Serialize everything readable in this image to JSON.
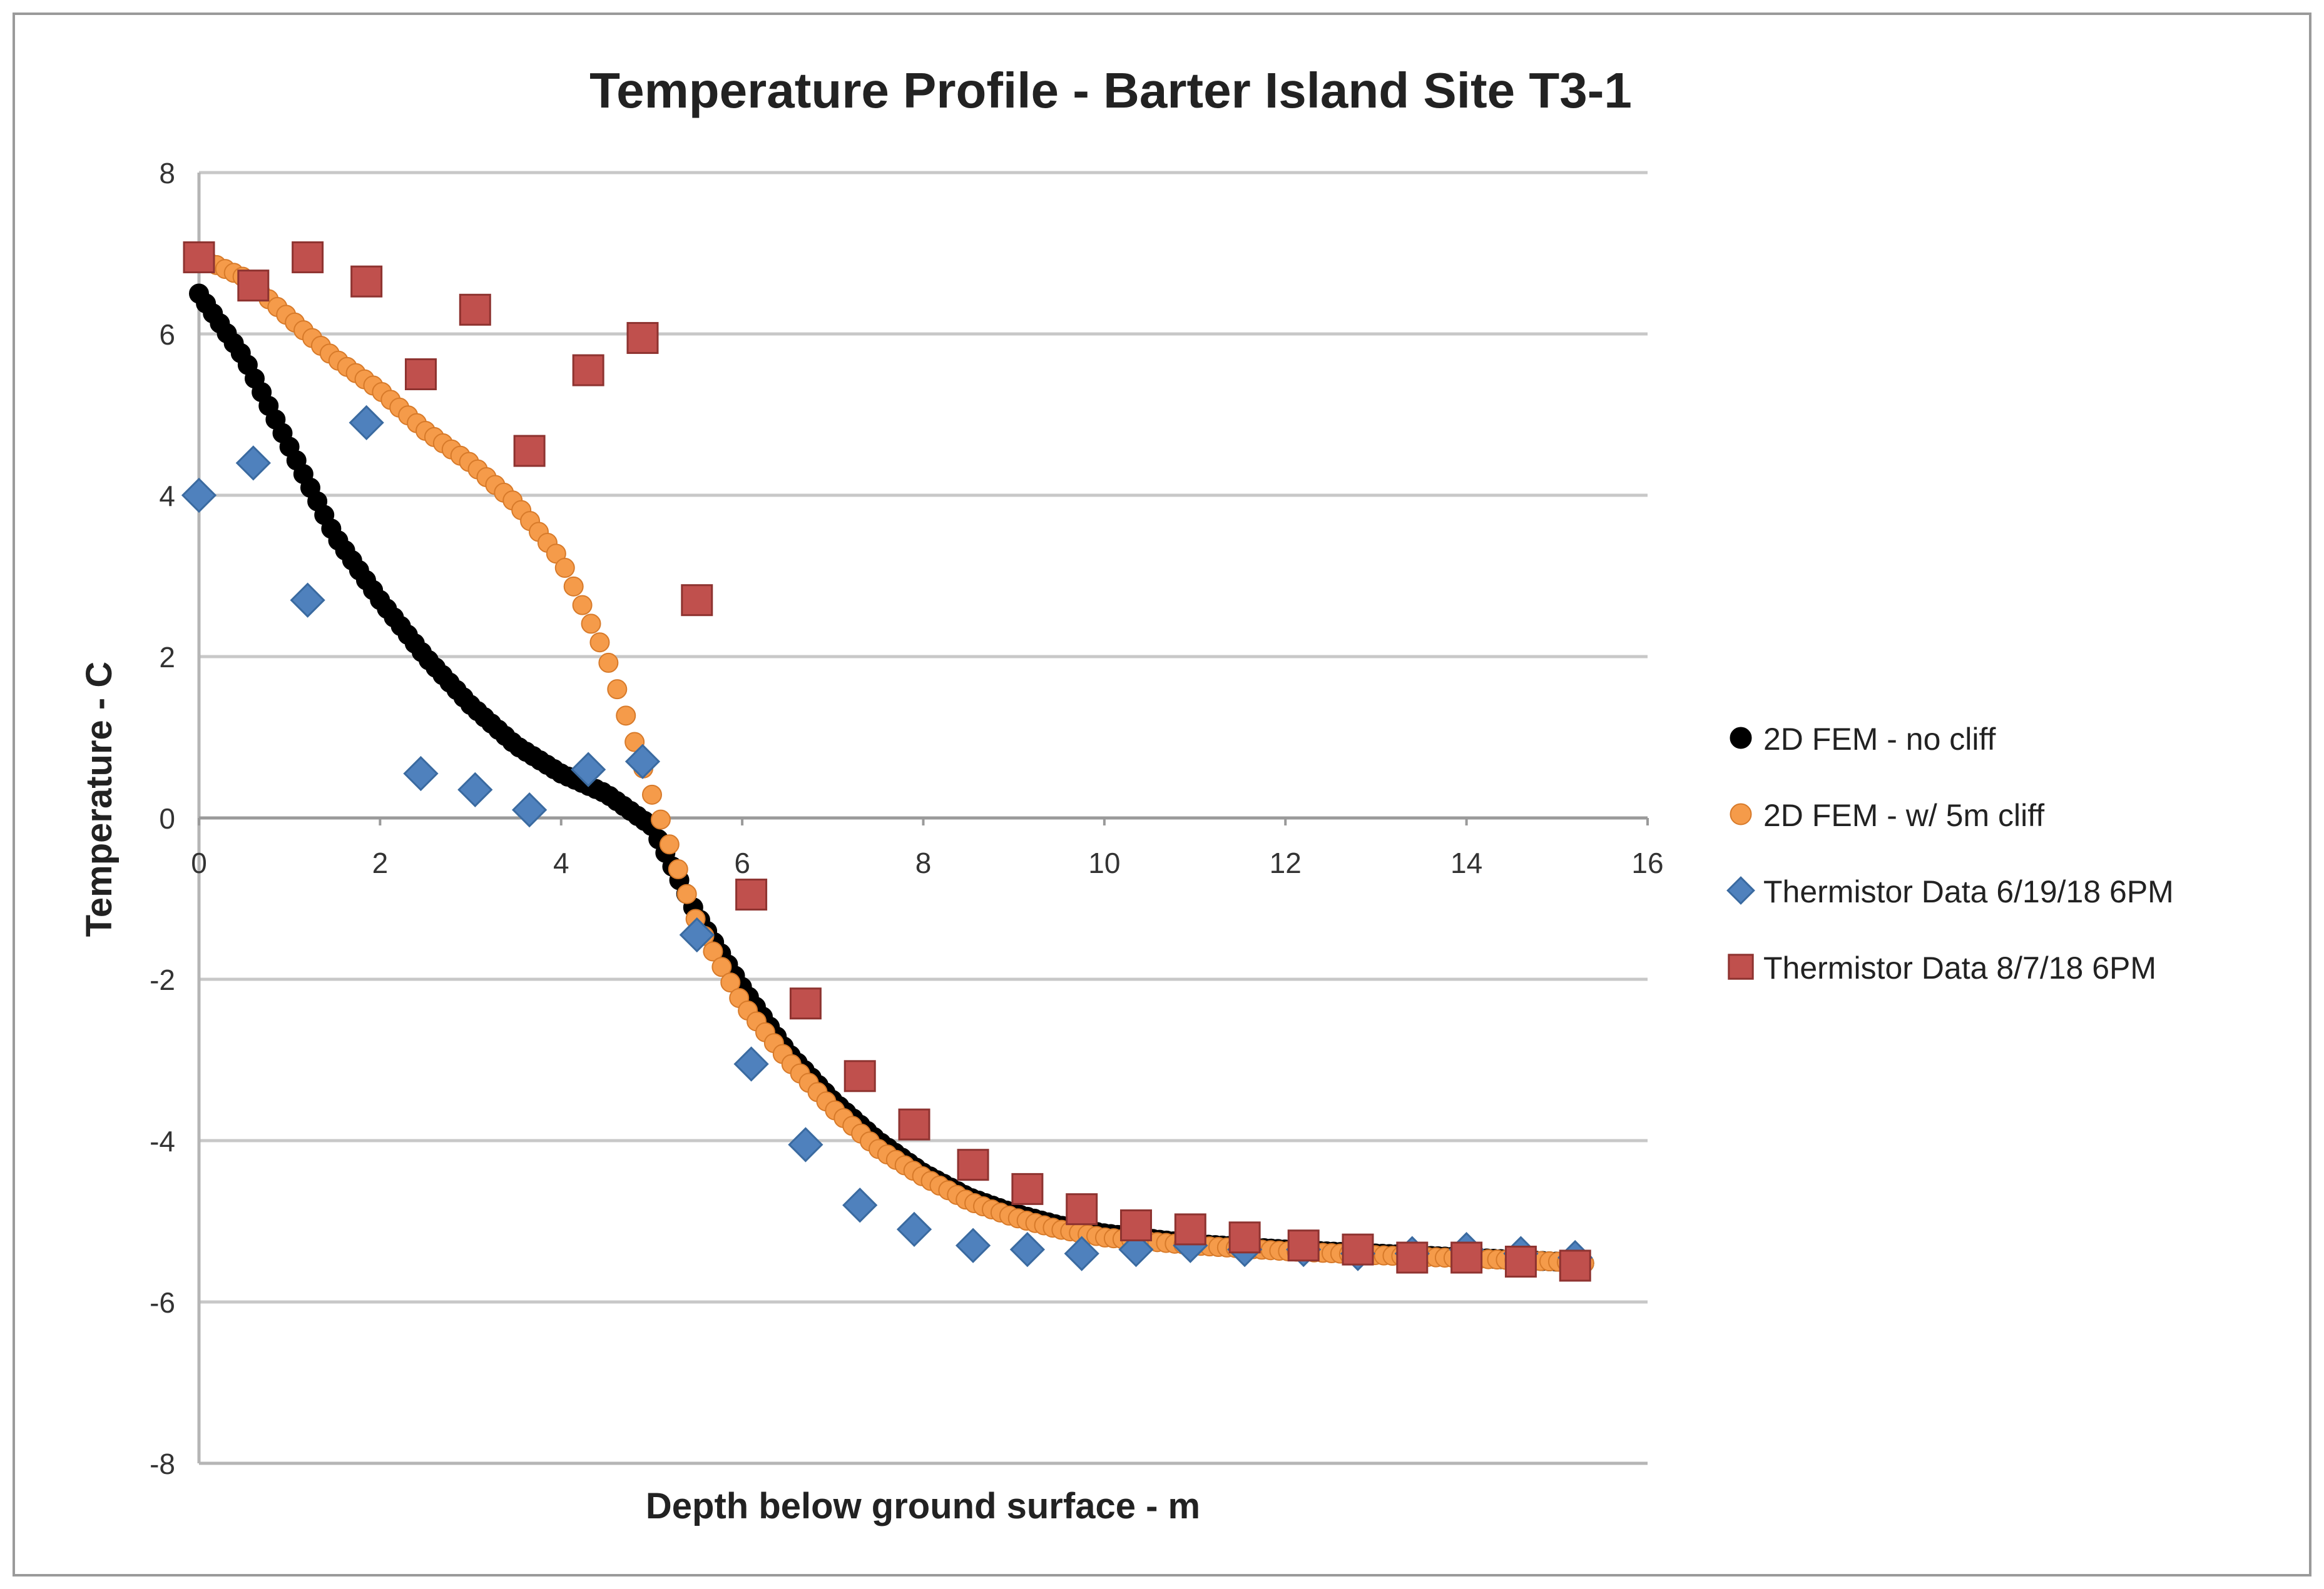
{
  "chart_data": {
    "type": "scatter",
    "title": "Temperature Profile - Barter Island Site T3-1",
    "xlabel": "Depth below ground surface - m",
    "ylabel": "Temperature - C",
    "xlim": [
      0,
      16
    ],
    "ylim": [
      -8,
      8
    ],
    "x_ticks": [
      0,
      2,
      4,
      6,
      8,
      10,
      12,
      14,
      16
    ],
    "y_ticks": [
      -8,
      -6,
      -4,
      -2,
      0,
      2,
      4,
      6,
      8
    ],
    "grid": "horizontal",
    "legend_position": "right",
    "series": [
      {
        "name": "2D FEM - no cliff",
        "marker": "circle",
        "color": "#000000",
        "anchor_x": [
          0,
          0.5,
          1,
          1.5,
          2,
          2.5,
          3,
          3.5,
          4,
          4.5,
          5,
          5.5,
          6,
          6.5,
          7,
          7.5,
          8,
          8.5,
          9,
          9.5,
          10,
          11,
          12,
          13,
          14,
          15,
          15.3
        ],
        "anchor_y": [
          6.5,
          5.7,
          4.6,
          3.5,
          2.7,
          2.0,
          1.4,
          0.9,
          0.55,
          0.3,
          -0.1,
          -1.2,
          -2.1,
          -2.9,
          -3.5,
          -4.0,
          -4.4,
          -4.7,
          -4.9,
          -5.05,
          -5.15,
          -5.28,
          -5.35,
          -5.4,
          -5.45,
          -5.5,
          -5.52
        ],
        "n_points": 200
      },
      {
        "name": "2D FEM - w/ 5m cliff",
        "marker": "circle",
        "color": "#f59b4a",
        "anchor_x": [
          0,
          0.5,
          1,
          1.5,
          2,
          2.5,
          3,
          3.5,
          4,
          4.5,
          5,
          5.5,
          6,
          6.5,
          7,
          7.5,
          8,
          8.5,
          9,
          9.5,
          10,
          11,
          12,
          13,
          14,
          15,
          15.3
        ],
        "anchor_y": [
          6.95,
          6.7,
          6.2,
          5.7,
          5.3,
          4.8,
          4.4,
          3.9,
          3.2,
          2.0,
          0.3,
          -1.3,
          -2.3,
          -3.0,
          -3.6,
          -4.1,
          -4.45,
          -4.75,
          -4.95,
          -5.1,
          -5.2,
          -5.3,
          -5.37,
          -5.42,
          -5.46,
          -5.5,
          -5.52
        ],
        "n_points": 160
      },
      {
        "name": "Thermistor Data 6/19/18 6PM",
        "marker": "diamond",
        "color": "#4f81bd",
        "x": [
          0,
          0.6,
          1.2,
          1.85,
          2.45,
          3.05,
          3.65,
          4.3,
          4.9,
          5.5,
          6.1,
          6.7,
          7.3,
          7.9,
          8.55,
          9.15,
          9.75,
          10.35,
          10.95,
          11.55,
          12.2,
          12.8,
          13.4,
          14,
          14.6,
          15.2
        ],
        "y": [
          4.0,
          4.4,
          2.7,
          4.9,
          0.55,
          0.35,
          0.1,
          0.6,
          0.7,
          -1.45,
          -3.05,
          -4.05,
          -4.8,
          -5.1,
          -5.3,
          -5.35,
          -5.4,
          -5.35,
          -5.3,
          -5.35,
          -5.35,
          -5.4,
          -5.4,
          -5.35,
          -5.4,
          -5.45
        ]
      },
      {
        "name": "Thermistor Data 8/7/18 6PM",
        "marker": "square",
        "color": "#c0504d",
        "x": [
          0,
          0.6,
          1.2,
          1.85,
          2.45,
          3.05,
          3.65,
          4.3,
          4.9,
          5.5,
          6.1,
          6.7,
          7.3,
          7.9,
          8.55,
          9.15,
          9.75,
          10.35,
          10.95,
          11.55,
          12.2,
          12.8,
          13.4,
          14,
          14.6,
          15.2
        ],
        "y": [
          6.95,
          6.6,
          6.95,
          6.65,
          5.5,
          6.3,
          4.55,
          5.55,
          5.95,
          2.7,
          -0.95,
          -2.3,
          -3.2,
          -3.8,
          -4.3,
          -4.6,
          -4.85,
          -5.05,
          -5.1,
          -5.2,
          -5.3,
          -5.35,
          -5.45,
          -5.45,
          -5.5,
          -5.55
        ]
      }
    ]
  }
}
